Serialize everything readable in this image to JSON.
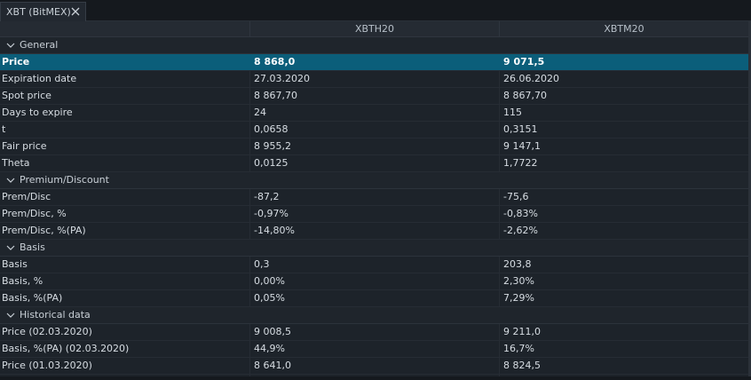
{
  "tab": {
    "label": "XBT (BitMEX)"
  },
  "columns": [
    "",
    "XBTH20",
    "XBTM20"
  ],
  "groups": [
    {
      "title": "General",
      "rows": [
        {
          "label": "Price",
          "a": "8 868,0",
          "b": "9 071,5",
          "selected": true
        },
        {
          "label": "Expiration date",
          "a": "27.03.2020",
          "b": "26.06.2020"
        },
        {
          "label": "Spot price",
          "a": "8 867,70",
          "b": "8 867,70"
        },
        {
          "label": "Days to expire",
          "a": "24",
          "b": "115"
        },
        {
          "label": "t",
          "a": "0,0658",
          "b": "0,3151"
        },
        {
          "label": "Fair price",
          "a": "8 955,2",
          "b": "9 147,1"
        },
        {
          "label": "Theta",
          "a": "0,0125",
          "b": "1,7722"
        }
      ]
    },
    {
      "title": "Premium/Discount",
      "rows": [
        {
          "label": "Prem/Disc",
          "a": "-87,2",
          "b": "-75,6"
        },
        {
          "label": "Prem/Disc, %",
          "a": "-0,97%",
          "b": "-0,83%"
        },
        {
          "label": "Prem/Disc, %(PA)",
          "a": "-14,80%",
          "b": "-2,62%"
        }
      ]
    },
    {
      "title": "Basis",
      "rows": [
        {
          "label": "Basis",
          "a": "0,3",
          "b": "203,8"
        },
        {
          "label": "Basis, %",
          "a": "0,00%",
          "b": "2,30%"
        },
        {
          "label": "Basis, %(PA)",
          "a": "0,05%",
          "b": "7,29%"
        }
      ]
    },
    {
      "title": "Historical data",
      "rows": [
        {
          "label": "Price (02.03.2020)",
          "a": "9 008,5",
          "b": "9 211,0"
        },
        {
          "label": "Basis, %(PA) (02.03.2020)",
          "a": "44,9%",
          "b": "16,7%"
        },
        {
          "label": "Price (01.03.2020)",
          "a": "8 641,0",
          "b": "8 824,5"
        }
      ]
    }
  ]
}
